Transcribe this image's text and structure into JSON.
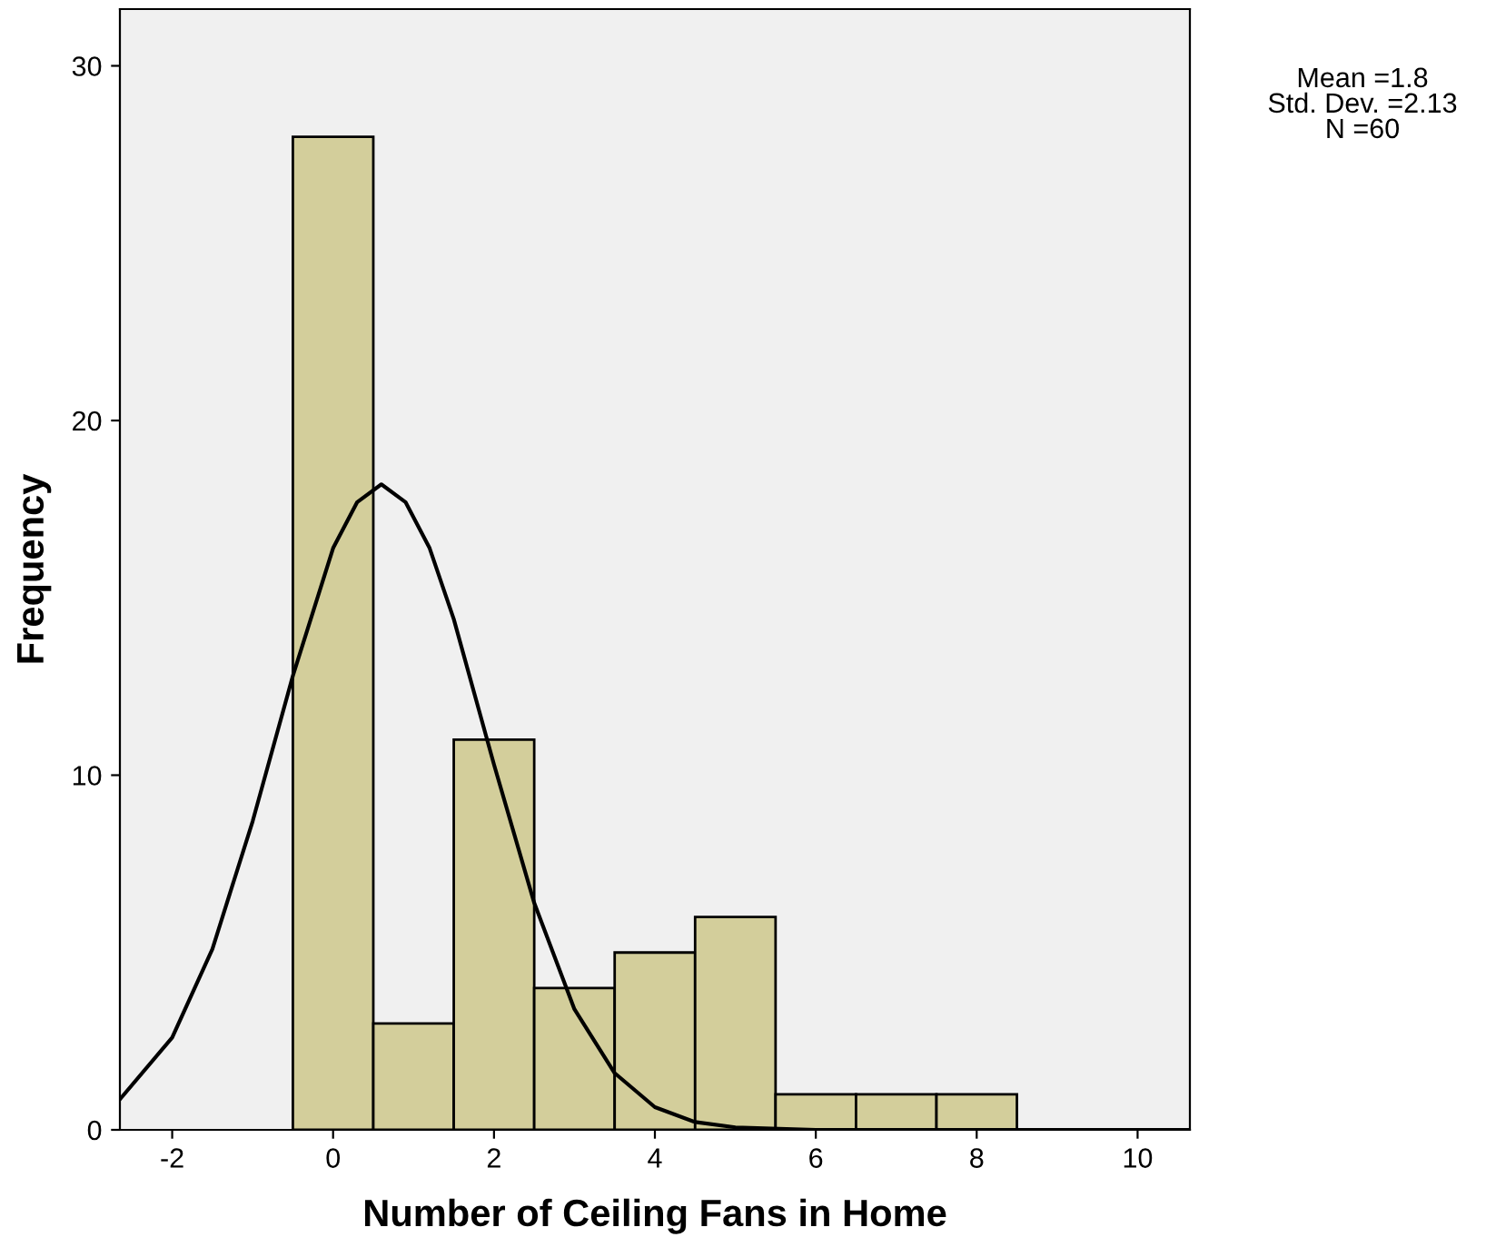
{
  "chart_data": {
    "type": "histogram",
    "xlabel": "Number of Ceiling Fans in Home",
    "ylabel": "Frequency",
    "bins": [
      -0.5,
      0.5,
      1.5,
      2.5,
      3.5,
      4.5,
      5.5,
      6.5,
      7.5,
      8.5
    ],
    "series": [
      {
        "color": "#d3ce9b",
        "values": [
          28,
          3,
          11,
          4,
          5,
          6,
          1,
          1,
          1
        ]
      },
      {
        "type": "line",
        "color": "#000000",
        "x": [
          -2.65,
          -2,
          -1.5,
          -1,
          -0.5,
          0,
          0.3,
          0.6,
          0.9,
          1.2,
          1.5,
          2,
          2.5,
          3,
          3.5,
          4,
          4.5,
          5,
          6,
          7,
          8,
          9,
          10,
          10.65
        ],
        "values": [
          0.86,
          2.6,
          5.1,
          8.7,
          12.8,
          16.4,
          17.7,
          18.2,
          17.7,
          16.4,
          14.4,
          10.3,
          6.4,
          3.4,
          1.6,
          0.64,
          0.22,
          0.07,
          0,
          0,
          0,
          0,
          0,
          0
        ]
      }
    ],
    "xlim": [
      -2.65,
      10.65
    ],
    "ylim": [
      0,
      31.6
    ],
    "xticks": [
      -2,
      0,
      2,
      4,
      6,
      8,
      10
    ],
    "yticks": [
      0,
      10,
      20,
      30
    ],
    "grid": false,
    "legend": false,
    "annotations": [
      "Mean =1.8",
      "Std. Dev. =2.13",
      "N =60"
    ]
  }
}
